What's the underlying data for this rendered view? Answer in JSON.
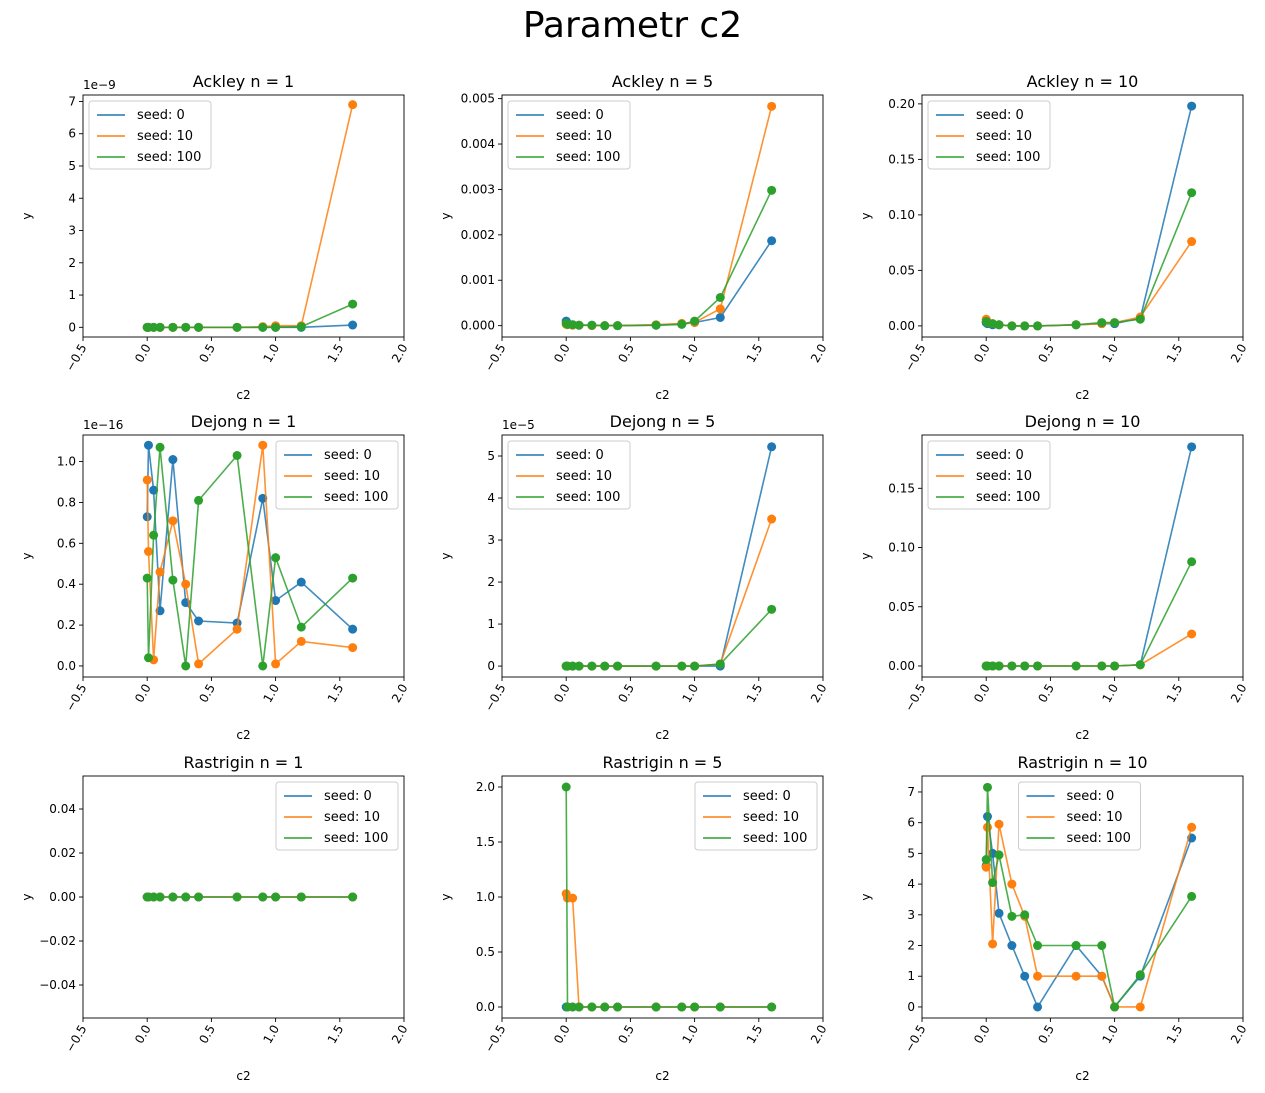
{
  "suptitle": "Parametr c2",
  "colors": {
    "seed_0": "#1f77b4",
    "seed_10": "#ff7f0e",
    "seed_100": "#2ca02c"
  },
  "chart_data": [
    {
      "type": "line",
      "title": "Ackley n = 1",
      "xlabel": "c2",
      "ylabel": "y",
      "xlim": [
        -0.5,
        2.0
      ],
      "ylim": [
        -0.3,
        7.2
      ],
      "xticks": [
        "−0.5",
        "0.0",
        "0.5",
        "1.0",
        "1.5",
        "2.0"
      ],
      "xtick_values": [
        -0.5,
        0.0,
        0.5,
        1.0,
        1.5,
        2.0
      ],
      "yticks": [
        "0",
        "1",
        "2",
        "3",
        "4",
        "5",
        "6",
        "7"
      ],
      "ytick_values": [
        0,
        1,
        2,
        3,
        4,
        5,
        6,
        7
      ],
      "offset": "1e−9",
      "legend": "upper left",
      "x": [
        0.0,
        0.01,
        0.05,
        0.1,
        0.2,
        0.3,
        0.4,
        0.7,
        0.9,
        1.0,
        1.2,
        1.6
      ],
      "series": [
        {
          "name": "seed: 0",
          "values": [
            0.0,
            0.0,
            0.0,
            0.0,
            0.0,
            0.0,
            0.0,
            0.0,
            0.0,
            0.0,
            0.0,
            0.07
          ]
        },
        {
          "name": "seed: 10",
          "values": [
            0.0,
            0.0,
            0.0,
            0.0,
            0.0,
            0.0,
            0.0,
            0.0,
            0.02,
            0.05,
            0.05,
            6.9
          ]
        },
        {
          "name": "seed: 100",
          "values": [
            0.0,
            0.0,
            0.0,
            0.0,
            0.0,
            0.0,
            0.0,
            0.0,
            0.0,
            0.0,
            0.02,
            0.72
          ]
        }
      ]
    },
    {
      "type": "line",
      "title": "Ackley n = 5",
      "xlabel": "c2",
      "ylabel": "y",
      "xlim": [
        -0.5,
        2.0
      ],
      "ylim": [
        -0.00025,
        0.00508
      ],
      "xticks": [
        "−0.5",
        "0.0",
        "0.5",
        "1.0",
        "1.5",
        "2.0"
      ],
      "xtick_values": [
        -0.5,
        0.0,
        0.5,
        1.0,
        1.5,
        2.0
      ],
      "yticks": [
        "0.000",
        "0.001",
        "0.002",
        "0.003",
        "0.004",
        "0.005"
      ],
      "ytick_values": [
        0,
        0.001,
        0.002,
        0.003,
        0.004,
        0.005
      ],
      "offset": "",
      "legend": "upper left",
      "x": [
        0.0,
        0.01,
        0.05,
        0.1,
        0.2,
        0.3,
        0.4,
        0.7,
        0.9,
        1.0,
        1.2,
        1.6
      ],
      "series": [
        {
          "name": "seed: 0",
          "values": [
            0.0001,
            5e-05,
            2e-05,
            1e-05,
            1e-05,
            0.0,
            0.0,
            1e-05,
            3e-05,
            7e-05,
            0.00018,
            0.00187
          ]
        },
        {
          "name": "seed: 10",
          "values": [
            3e-05,
            2e-05,
            1e-05,
            1e-05,
            0.0,
            0.0,
            0.0,
            2e-05,
            5e-05,
            7e-05,
            0.00037,
            0.00483
          ]
        },
        {
          "name": "seed: 100",
          "values": [
            5e-05,
            3e-05,
            2e-05,
            1e-05,
            1e-05,
            0.0,
            0.0,
            1e-05,
            3e-05,
            0.0001,
            0.00062,
            0.00298
          ]
        }
      ]
    },
    {
      "type": "line",
      "title": "Ackley n = 10",
      "xlabel": "c2",
      "ylabel": "y",
      "xlim": [
        -0.5,
        2.0
      ],
      "ylim": [
        -0.01,
        0.208
      ],
      "xticks": [
        "−0.5",
        "0.0",
        "0.5",
        "1.0",
        "1.5",
        "2.0"
      ],
      "xtick_values": [
        -0.5,
        0.0,
        0.5,
        1.0,
        1.5,
        2.0
      ],
      "yticks": [
        "0.00",
        "0.05",
        "0.10",
        "0.15",
        "0.20"
      ],
      "ytick_values": [
        0,
        0.05,
        0.1,
        0.15,
        0.2
      ],
      "offset": "",
      "legend": "upper left",
      "x": [
        0.0,
        0.01,
        0.05,
        0.1,
        0.2,
        0.3,
        0.4,
        0.7,
        0.9,
        1.0,
        1.2,
        1.6
      ],
      "series": [
        {
          "name": "seed: 0",
          "values": [
            0.003,
            0.002,
            0.001,
            0.001,
            0.0,
            0.0,
            0.0,
            0.001,
            0.002,
            0.002,
            0.007,
            0.198
          ]
        },
        {
          "name": "seed: 10",
          "values": [
            0.006,
            0.003,
            0.002,
            0.001,
            0.0,
            0.0,
            0.0,
            0.001,
            0.002,
            0.003,
            0.008,
            0.076
          ]
        },
        {
          "name": "seed: 100",
          "values": [
            0.004,
            0.003,
            0.002,
            0.001,
            0.0,
            0.0,
            0.0,
            0.001,
            0.003,
            0.003,
            0.006,
            0.12
          ]
        }
      ]
    },
    {
      "type": "line",
      "title": "Dejong n = 1",
      "xlabel": "c2",
      "ylabel": "y",
      "xlim": [
        -0.5,
        2.0
      ],
      "ylim": [
        -0.054,
        1.13
      ],
      "xticks": [
        "−0.5",
        "0.0",
        "0.5",
        "1.0",
        "1.5",
        "2.0"
      ],
      "xtick_values": [
        -0.5,
        0.0,
        0.5,
        1.0,
        1.5,
        2.0
      ],
      "yticks": [
        "0.0",
        "0.2",
        "0.4",
        "0.6",
        "0.8",
        "1.0"
      ],
      "ytick_values": [
        0,
        0.2,
        0.4,
        0.6,
        0.8,
        1.0
      ],
      "offset": "1e−16",
      "legend": "upper right",
      "x": [
        0.0,
        0.01,
        0.05,
        0.1,
        0.2,
        0.3,
        0.4,
        0.7,
        0.9,
        1.0,
        1.2,
        1.6
      ],
      "series": [
        {
          "name": "seed: 0",
          "values": [
            0.73,
            1.08,
            0.86,
            0.27,
            1.01,
            0.31,
            0.22,
            0.21,
            0.82,
            0.32,
            0.41,
            0.18
          ]
        },
        {
          "name": "seed: 10",
          "values": [
            0.91,
            0.56,
            0.03,
            0.46,
            0.71,
            0.4,
            0.01,
            0.18,
            1.08,
            0.01,
            0.12,
            0.09
          ]
        },
        {
          "name": "seed: 100",
          "values": [
            0.43,
            0.04,
            0.64,
            1.07,
            0.42,
            0.0,
            0.81,
            1.03,
            0.0,
            0.53,
            0.19,
            0.43
          ]
        }
      ]
    },
    {
      "type": "line",
      "title": "Dejong n = 5",
      "xlabel": "c2",
      "ylabel": "y",
      "xlim": [
        -0.5,
        2.0
      ],
      "ylim": [
        -0.26,
        5.5
      ],
      "xticks": [
        "−0.5",
        "0.0",
        "0.5",
        "1.0",
        "1.5",
        "2.0"
      ],
      "xtick_values": [
        -0.5,
        0.0,
        0.5,
        1.0,
        1.5,
        2.0
      ],
      "yticks": [
        "0",
        "1",
        "2",
        "3",
        "4",
        "5"
      ],
      "ytick_values": [
        0,
        1,
        2,
        3,
        4,
        5
      ],
      "offset": "1e−5",
      "legend": "upper left",
      "x": [
        0.0,
        0.01,
        0.05,
        0.1,
        0.2,
        0.3,
        0.4,
        0.7,
        0.9,
        1.0,
        1.2,
        1.6
      ],
      "series": [
        {
          "name": "seed: 0",
          "values": [
            0.0,
            0.0,
            0.0,
            0.0,
            0.0,
            0.0,
            0.0,
            0.0,
            0.0,
            0.0,
            0.0,
            5.22
          ]
        },
        {
          "name": "seed: 10",
          "values": [
            0.0,
            0.0,
            0.0,
            0.0,
            0.0,
            0.0,
            0.0,
            0.0,
            0.0,
            0.0,
            0.05,
            3.5
          ]
        },
        {
          "name": "seed: 100",
          "values": [
            0.0,
            0.0,
            0.0,
            0.0,
            0.0,
            0.0,
            0.0,
            0.0,
            0.0,
            0.0,
            0.05,
            1.35
          ]
        }
      ]
    },
    {
      "type": "line",
      "title": "Dejong n = 10",
      "xlabel": "c2",
      "ylabel": "y",
      "xlim": [
        -0.5,
        2.0
      ],
      "ylim": [
        -0.0093,
        0.195
      ],
      "xticks": [
        "−0.5",
        "0.0",
        "0.5",
        "1.0",
        "1.5",
        "2.0"
      ],
      "xtick_values": [
        -0.5,
        0.0,
        0.5,
        1.0,
        1.5,
        2.0
      ],
      "yticks": [
        "0.00",
        "0.05",
        "0.10",
        "0.15"
      ],
      "ytick_values": [
        0,
        0.05,
        0.1,
        0.15
      ],
      "offset": "",
      "legend": "upper left",
      "x": [
        0.0,
        0.01,
        0.05,
        0.1,
        0.2,
        0.3,
        0.4,
        0.7,
        0.9,
        1.0,
        1.2,
        1.6
      ],
      "series": [
        {
          "name": "seed: 0",
          "values": [
            0.0,
            0.0,
            0.0,
            0.0,
            0.0,
            0.0,
            0.0,
            0.0,
            0.0,
            0.0,
            0.001,
            0.185
          ]
        },
        {
          "name": "seed: 10",
          "values": [
            0.0,
            0.0,
            0.0,
            0.0,
            0.0,
            0.0,
            0.0,
            0.0,
            0.0,
            0.0,
            0.001,
            0.027
          ]
        },
        {
          "name": "seed: 100",
          "values": [
            0.0,
            0.0,
            0.0,
            0.0,
            0.0,
            0.0,
            0.0,
            0.0,
            0.0,
            0.0,
            0.001,
            0.088
          ]
        }
      ]
    },
    {
      "type": "line",
      "title": "Rastrigin n = 1",
      "xlabel": "c2",
      "ylabel": "y",
      "xlim": [
        -0.5,
        2.0
      ],
      "ylim": [
        -0.055,
        0.055
      ],
      "xticks": [
        "−0.5",
        "0.0",
        "0.5",
        "1.0",
        "1.5",
        "2.0"
      ],
      "xtick_values": [
        -0.5,
        0.0,
        0.5,
        1.0,
        1.5,
        2.0
      ],
      "yticks": [
        "−0.04",
        "−0.02",
        "0.00",
        "0.02",
        "0.04"
      ],
      "ytick_values": [
        -0.04,
        -0.02,
        0,
        0.02,
        0.04
      ],
      "offset": "",
      "legend": "upper right",
      "x": [
        0.0,
        0.01,
        0.05,
        0.1,
        0.2,
        0.3,
        0.4,
        0.7,
        0.9,
        1.0,
        1.2,
        1.6
      ],
      "series": [
        {
          "name": "seed: 0",
          "values": [
            0,
            0,
            0,
            0,
            0,
            0,
            0,
            0,
            0,
            0,
            0,
            0
          ]
        },
        {
          "name": "seed: 10",
          "values": [
            0,
            0,
            0,
            0,
            0,
            0,
            0,
            0,
            0,
            0,
            0,
            0
          ]
        },
        {
          "name": "seed: 100",
          "values": [
            0,
            0,
            0,
            0,
            0,
            0,
            0,
            0,
            0,
            0,
            0,
            0
          ]
        }
      ]
    },
    {
      "type": "line",
      "title": "Rastrigin n = 5",
      "xlabel": "c2",
      "ylabel": "y",
      "xlim": [
        -0.5,
        2.0
      ],
      "ylim": [
        -0.1,
        2.1
      ],
      "xticks": [
        "−0.5",
        "0.0",
        "0.5",
        "1.0",
        "1.5",
        "2.0"
      ],
      "xtick_values": [
        -0.5,
        0.0,
        0.5,
        1.0,
        1.5,
        2.0
      ],
      "yticks": [
        "0.0",
        "0.5",
        "1.0",
        "1.5",
        "2.0"
      ],
      "ytick_values": [
        0,
        0.5,
        1.0,
        1.5,
        2.0
      ],
      "offset": "",
      "legend": "upper right",
      "x": [
        0.0,
        0.01,
        0.05,
        0.1,
        0.2,
        0.3,
        0.4,
        0.7,
        0.9,
        1.0,
        1.2,
        1.6
      ],
      "series": [
        {
          "name": "seed: 0",
          "values": [
            0,
            0,
            0,
            0,
            0,
            0,
            0,
            0,
            0,
            0,
            0,
            0
          ]
        },
        {
          "name": "seed: 10",
          "values": [
            1.03,
            0.99,
            0.99,
            0,
            0,
            0,
            0,
            0,
            0,
            0,
            0,
            0
          ]
        },
        {
          "name": "seed: 100",
          "values": [
            2.0,
            0,
            0,
            0,
            0,
            0,
            0,
            0,
            0,
            0,
            0,
            0
          ]
        }
      ]
    },
    {
      "type": "line",
      "title": "Rastrigin n = 10",
      "xlabel": "c2",
      "ylabel": "y",
      "xlim": [
        -0.5,
        2.0
      ],
      "ylim": [
        -0.36,
        7.52
      ],
      "xticks": [
        "−0.5",
        "0.0",
        "0.5",
        "1.0",
        "1.5",
        "2.0"
      ],
      "xtick_values": [
        -0.5,
        0.0,
        0.5,
        1.0,
        1.5,
        2.0
      ],
      "yticks": [
        "0",
        "1",
        "2",
        "3",
        "4",
        "5",
        "6",
        "7"
      ],
      "ytick_values": [
        0,
        1,
        2,
        3,
        4,
        5,
        6,
        7
      ],
      "offset": "",
      "legend": "upper center",
      "x": [
        0.0,
        0.01,
        0.05,
        0.1,
        0.2,
        0.3,
        0.4,
        0.7,
        0.9,
        1.0,
        1.2,
        1.6
      ],
      "series": [
        {
          "name": "seed: 0",
          "values": [
            4.6,
            6.2,
            5.0,
            3.05,
            2.0,
            1.0,
            0.0,
            2.0,
            1.0,
            0.0,
            1.0,
            5.5
          ]
        },
        {
          "name": "seed: 10",
          "values": [
            4.55,
            5.85,
            2.05,
            5.95,
            4.0,
            2.95,
            1.0,
            1.0,
            1.0,
            0.0,
            0.0,
            5.85
          ]
        },
        {
          "name": "seed: 100",
          "values": [
            4.8,
            7.15,
            4.05,
            4.95,
            2.95,
            3.0,
            2.0,
            2.0,
            2.0,
            0.0,
            1.05,
            3.6
          ]
        }
      ]
    }
  ]
}
